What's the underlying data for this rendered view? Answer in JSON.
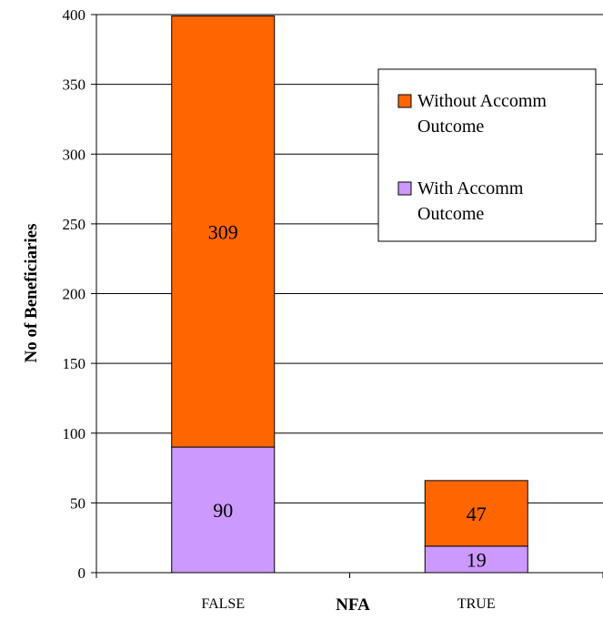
{
  "chart_data": {
    "type": "bar",
    "stacked": true,
    "categories": [
      "FALSE",
      "TRUE"
    ],
    "series": [
      {
        "name": "With Accomm Outcome",
        "values": [
          90,
          19
        ],
        "color": "#cc99ff"
      },
      {
        "name": "Without Accomm Outcome",
        "values": [
          309,
          47
        ],
        "color": "#ff6600"
      }
    ],
    "title": "",
    "xlabel": "NFA",
    "ylabel": "No of Beneficiaries",
    "ylim": [
      0,
      400
    ],
    "yticks": [
      "0",
      "50",
      "100",
      "150",
      "200",
      "250",
      "300",
      "350",
      "400"
    ],
    "grid": true,
    "legend": {
      "position": "top-right",
      "entries": [
        {
          "line1": "Without Accomm",
          "line2": "Outcome",
          "color": "#ff6600"
        },
        {
          "line1": "With Accomm",
          "line2": "Outcome",
          "color": "#cc99ff"
        }
      ]
    }
  }
}
